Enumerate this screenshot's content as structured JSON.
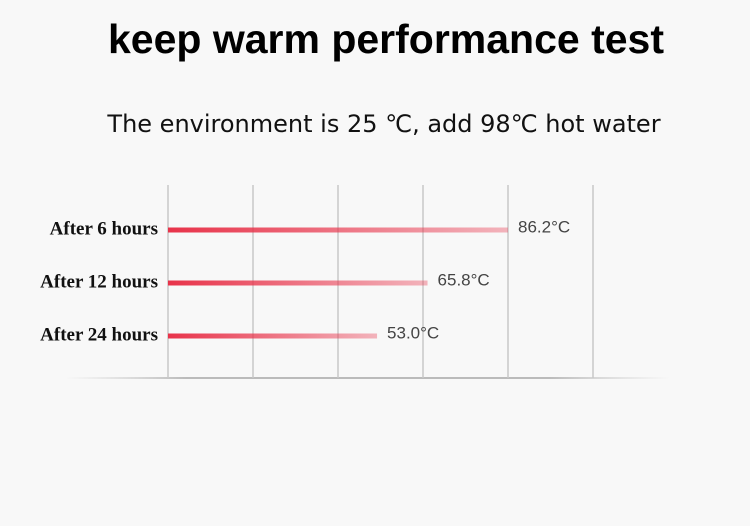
{
  "chart_data": {
    "type": "bar",
    "orientation": "horizontal",
    "title": "keep warm performance test",
    "subtitle": "The environment is 25 ℃, add 98℃ hot water",
    "categories": [
      "After 6 hours",
      "After 12 hours",
      "After 24 hours"
    ],
    "values": [
      86.2,
      65.8,
      53.0
    ],
    "value_labels": [
      "86.2°C",
      "65.8°C",
      "53.0°C"
    ],
    "color": "#e8334a",
    "xlim": [
      0,
      107.75
    ],
    "grid": true
  }
}
